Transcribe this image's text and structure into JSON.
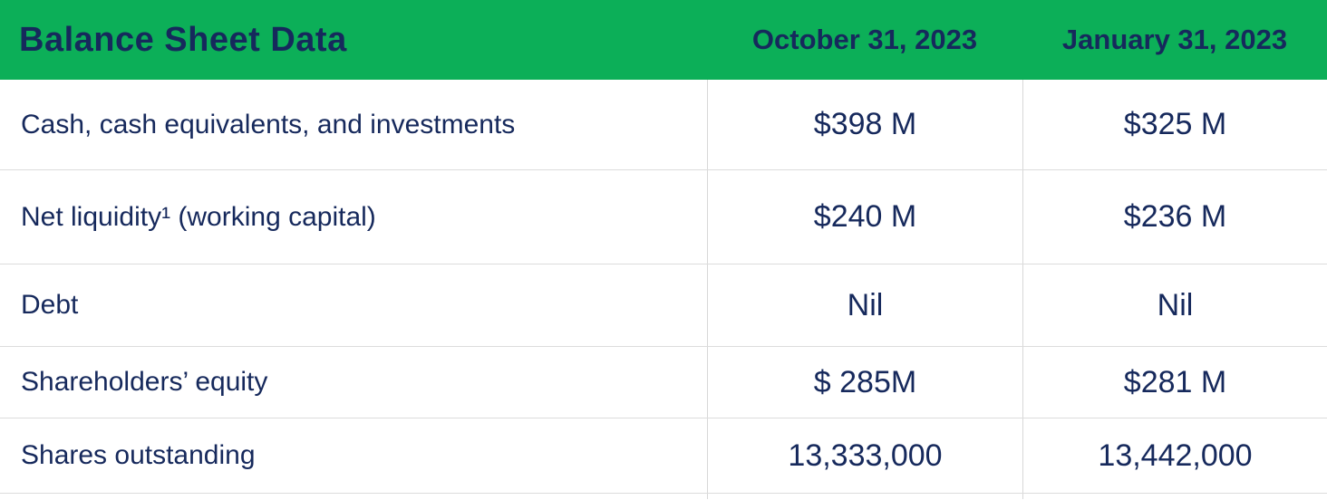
{
  "colors": {
    "header_bg": "#0caf58",
    "text_navy": "#16295c",
    "divider": "#d8d8d8"
  },
  "table": {
    "title": "Balance Sheet Data",
    "columns": [
      {
        "label": "October 31, 2023"
      },
      {
        "label": "January 31, 2023"
      }
    ],
    "rows": [
      {
        "label": "Cash, cash equivalents, and investments",
        "values": [
          "$398 M",
          "$325 M"
        ]
      },
      {
        "label": "Net liquidity¹ (working capital)",
        "values": [
          "$240 M",
          "$236 M"
        ]
      },
      {
        "label": "Debt",
        "values": [
          "Nil",
          "Nil"
        ]
      },
      {
        "label": "Shareholders’ equity",
        "values": [
          "$ 285M",
          "$281 M"
        ]
      },
      {
        "label": "Shares outstanding",
        "values": [
          "13,333,000",
          "13,442,000"
        ]
      }
    ]
  }
}
